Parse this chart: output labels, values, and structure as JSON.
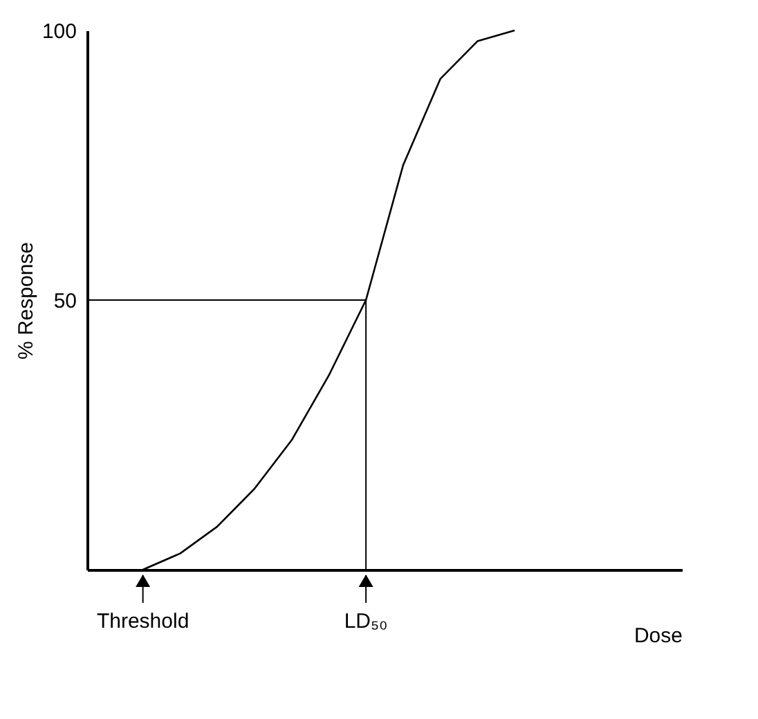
{
  "chart_data": {
    "type": "line",
    "xlabel": "Dose",
    "ylabel": "% Response",
    "categories": [
      null,
      null,
      null,
      null,
      null,
      null,
      null,
      null,
      null,
      null,
      null,
      null,
      null,
      null,
      null,
      null
    ],
    "series": [
      {
        "color": "#000000",
        "values": [
          null,
          0,
          3,
          8,
          15,
          24,
          36,
          50,
          75,
          91,
          98,
          100,
          null,
          null,
          null,
          null
        ]
      }
    ],
    "ylim": [
      0,
      100
    ],
    "yticks": [
      50,
      100
    ],
    "tick_labels": "y",
    "grid": false,
    "marker": "none",
    "line_style": "solid",
    "ref_lines": [
      {
        "axis": "y",
        "value": 50,
        "color": "#000000"
      }
    ],
    "annotations": [
      "Threshold",
      "LD₅₀"
    ]
  }
}
